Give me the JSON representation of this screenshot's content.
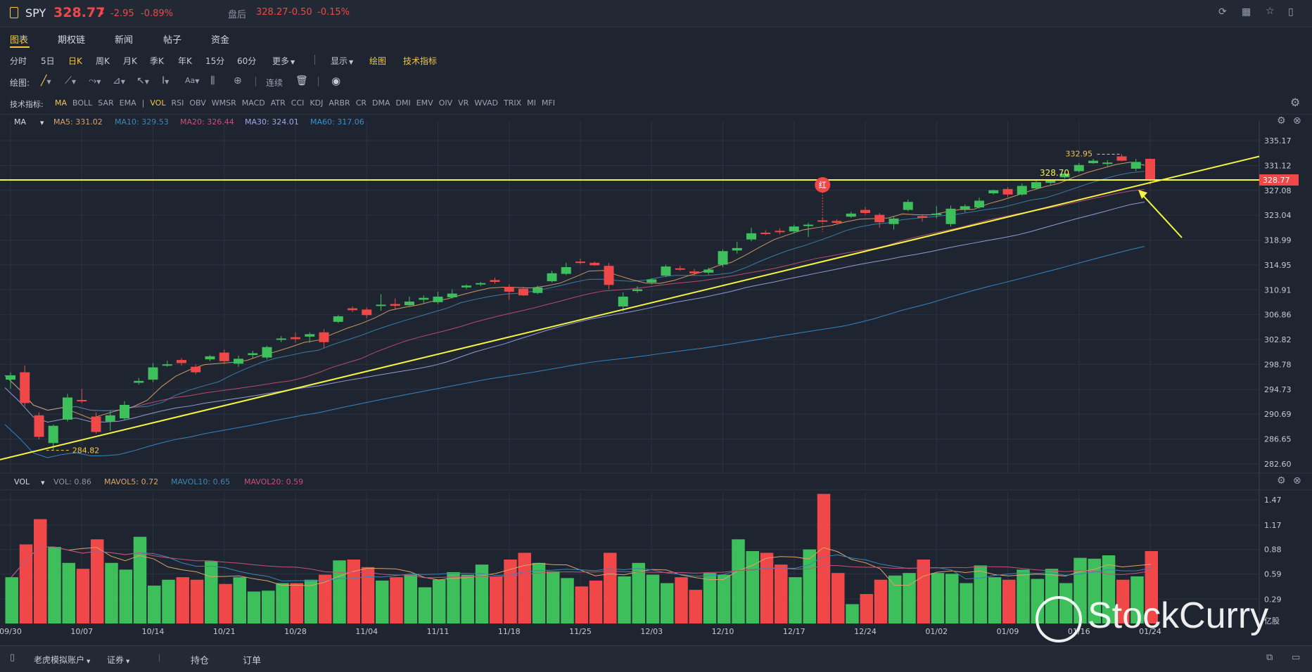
{
  "header": {
    "symbol": "SPY",
    "price": "328.77",
    "arrow": "⬇",
    "change": "-2.95",
    "change_pct": "-0.89%",
    "after_hours_label": "盘后",
    "after_hours_price": "328.27",
    "after_hours_change": "-0.50",
    "after_hours_pct": "-0.15%"
  },
  "nav_tabs": [
    "图表",
    "期权链",
    "新闻",
    "帖子",
    "资金"
  ],
  "periods": [
    "分时",
    "5日",
    "日K",
    "周K",
    "月K",
    "季K",
    "年K",
    "15分",
    "60分"
  ],
  "more_label": "更多",
  "display_label": "显示",
  "draw_label": "绘图",
  "tech_label": "技术指标",
  "draw_toolbar": {
    "label": "绘图:",
    "continuous": "连续"
  },
  "indicators": {
    "label": "技术指标:",
    "main": [
      "MA",
      "BOLL",
      "SAR",
      "EMA"
    ],
    "sub": [
      "VOL",
      "RSI",
      "OBV",
      "WMSR",
      "MACD",
      "ATR",
      "CCI",
      "KDJ",
      "ARBR",
      "CR",
      "DMA",
      "DMI",
      "EMV",
      "OIV",
      "VR",
      "WVAD",
      "TRIX",
      "MI",
      "MFI"
    ]
  },
  "ma_legend": {
    "name": "MA",
    "items": [
      {
        "label": "MA5: 331.02",
        "color": "#d9a46a"
      },
      {
        "label": "MA10: 329.53",
        "color": "#3d86b4"
      },
      {
        "label": "MA20: 326.44",
        "color": "#c84f7a"
      },
      {
        "label": "MA30: 324.01",
        "color": "#9fa7ea"
      },
      {
        "label": "MA60: 317.06",
        "color": "#3a8fd0"
      }
    ]
  },
  "vol_legend": {
    "name": "VOL",
    "items": [
      {
        "label": "VOL: 0.86",
        "color": "#8b93a0"
      },
      {
        "label": "MAVOL5: 0.72",
        "color": "#d9a46a"
      },
      {
        "label": "MAVOL10: 0.65",
        "color": "#3d86b4"
      },
      {
        "label": "MAVOL20: 0.59",
        "color": "#c84f7a"
      }
    ]
  },
  "price_axis": [
    "335.17",
    "331.12",
    "327.08",
    "323.04",
    "318.99",
    "314.95",
    "310.91",
    "306.86",
    "302.82",
    "298.78",
    "294.73",
    "290.69",
    "286.65",
    "282.60"
  ],
  "current_price_tag": "328.77",
  "vol_axis": [
    "1.47",
    "1.17",
    "0.88",
    "0.59",
    "0.29",
    "亿股"
  ],
  "date_labels": [
    "09/30",
    "10/07",
    "10/14",
    "10/21",
    "10/28",
    "11/04",
    "11/11",
    "11/18",
    "11/25",
    "12/03",
    "12/10",
    "12/17",
    "12/24",
    "01/02",
    "01/09",
    "01/16",
    "01/24"
  ],
  "annotations": {
    "high": "332.95",
    "low": "284.82",
    "level": "328.70",
    "marker": "红"
  },
  "watermark": "StockCurry",
  "bottom": {
    "account": "老虎模拟账户",
    "type": "证券",
    "positions": "持仓",
    "orders": "订单"
  },
  "colors": {
    "up": "#3dbf5c",
    "down": "#f04848",
    "bg": "#1f2530",
    "yellow": "#f5f542"
  },
  "chart_data": {
    "type": "candlestick",
    "candles": [
      {
        "o": 296.3,
        "h": 297.5,
        "l": 294.8,
        "c": 297.0
      },
      {
        "o": 297.5,
        "h": 298.6,
        "l": 292.0,
        "c": 292.5
      },
      {
        "o": 290.5,
        "h": 291.0,
        "l": 286.6,
        "c": 287.0
      },
      {
        "o": 286.0,
        "h": 289.0,
        "l": 284.82,
        "c": 288.8
      },
      {
        "o": 289.8,
        "h": 294.0,
        "l": 289.5,
        "c": 293.4
      },
      {
        "o": 293.0,
        "h": 294.8,
        "l": 292.5,
        "c": 292.9
      },
      {
        "o": 290.3,
        "h": 291.0,
        "l": 287.5,
        "c": 287.8
      },
      {
        "o": 289.5,
        "h": 291.3,
        "l": 288.0,
        "c": 290.5
      },
      {
        "o": 290.0,
        "h": 292.8,
        "l": 289.7,
        "c": 292.2
      },
      {
        "o": 295.8,
        "h": 296.6,
        "l": 295.5,
        "c": 296.1
      },
      {
        "o": 296.3,
        "h": 299.0,
        "l": 295.9,
        "c": 298.3
      },
      {
        "o": 298.7,
        "h": 299.4,
        "l": 298.4,
        "c": 298.8
      },
      {
        "o": 299.5,
        "h": 299.8,
        "l": 298.6,
        "c": 299.0
      },
      {
        "o": 298.4,
        "h": 298.8,
        "l": 297.2,
        "c": 297.5
      },
      {
        "o": 299.6,
        "h": 300.3,
        "l": 299.3,
        "c": 300.1
      },
      {
        "o": 300.7,
        "h": 301.2,
        "l": 298.8,
        "c": 299.3
      },
      {
        "o": 298.9,
        "h": 300.2,
        "l": 298.4,
        "c": 299.7
      },
      {
        "o": 300.3,
        "h": 301.0,
        "l": 299.8,
        "c": 300.6
      },
      {
        "o": 299.9,
        "h": 301.8,
        "l": 299.6,
        "c": 301.6
      },
      {
        "o": 302.8,
        "h": 303.4,
        "l": 302.4,
        "c": 303.0
      },
      {
        "o": 303.2,
        "h": 304.0,
        "l": 302.3,
        "c": 302.9
      },
      {
        "o": 303.3,
        "h": 304.0,
        "l": 302.3,
        "c": 303.7
      },
      {
        "o": 304.0,
        "h": 304.5,
        "l": 301.5,
        "c": 302.4
      },
      {
        "o": 305.7,
        "h": 306.8,
        "l": 305.5,
        "c": 306.6
      },
      {
        "o": 307.9,
        "h": 308.2,
        "l": 307.3,
        "c": 307.6
      },
      {
        "o": 307.7,
        "h": 308.0,
        "l": 306.3,
        "c": 306.8
      },
      {
        "o": 308.4,
        "h": 310.2,
        "l": 307.5,
        "c": 308.5
      },
      {
        "o": 308.6,
        "h": 309.5,
        "l": 307.8,
        "c": 308.3
      },
      {
        "o": 308.4,
        "h": 309.8,
        "l": 308.2,
        "c": 309.0
      },
      {
        "o": 309.3,
        "h": 310.0,
        "l": 308.8,
        "c": 309.6
      },
      {
        "o": 308.9,
        "h": 310.6,
        "l": 308.6,
        "c": 309.8
      },
      {
        "o": 309.7,
        "h": 311.0,
        "l": 309.5,
        "c": 310.3
      },
      {
        "o": 311.3,
        "h": 311.8,
        "l": 311.0,
        "c": 311.6
      },
      {
        "o": 311.8,
        "h": 312.2,
        "l": 311.5,
        "c": 312.0
      },
      {
        "o": 312.5,
        "h": 312.9,
        "l": 311.9,
        "c": 312.2
      },
      {
        "o": 311.4,
        "h": 311.8,
        "l": 309.3,
        "c": 310.6
      },
      {
        "o": 311.1,
        "h": 311.4,
        "l": 309.9,
        "c": 310.0
      },
      {
        "o": 310.4,
        "h": 311.6,
        "l": 310.2,
        "c": 311.3
      },
      {
        "o": 312.3,
        "h": 314.0,
        "l": 312.1,
        "c": 313.6
      },
      {
        "o": 313.5,
        "h": 315.3,
        "l": 313.3,
        "c": 314.6
      },
      {
        "o": 315.5,
        "h": 316.0,
        "l": 315.0,
        "c": 315.4
      },
      {
        "o": 315.3,
        "h": 315.5,
        "l": 314.8,
        "c": 314.9
      },
      {
        "o": 314.8,
        "h": 315.3,
        "l": 311.0,
        "c": 311.7
      },
      {
        "o": 308.2,
        "h": 310.5,
        "l": 307.4,
        "c": 309.8
      },
      {
        "o": 310.7,
        "h": 311.5,
        "l": 310.4,
        "c": 311.0
      },
      {
        "o": 312.1,
        "h": 312.8,
        "l": 311.8,
        "c": 312.6
      },
      {
        "o": 313.2,
        "h": 315.0,
        "l": 313.0,
        "c": 314.7
      },
      {
        "o": 314.4,
        "h": 314.8,
        "l": 314.0,
        "c": 314.2
      },
      {
        "o": 313.9,
        "h": 314.3,
        "l": 313.2,
        "c": 313.6
      },
      {
        "o": 313.7,
        "h": 314.5,
        "l": 313.4,
        "c": 314.2
      },
      {
        "o": 315.0,
        "h": 317.5,
        "l": 314.6,
        "c": 317.2
      },
      {
        "o": 317.3,
        "h": 318.7,
        "l": 316.8,
        "c": 317.7
      },
      {
        "o": 319.1,
        "h": 321.0,
        "l": 318.8,
        "c": 320.1
      },
      {
        "o": 320.2,
        "h": 320.6,
        "l": 319.8,
        "c": 320.1
      },
      {
        "o": 320.5,
        "h": 320.9,
        "l": 319.9,
        "c": 320.3
      },
      {
        "o": 320.4,
        "h": 321.5,
        "l": 320.1,
        "c": 321.2
      },
      {
        "o": 321.3,
        "h": 321.8,
        "l": 319.5,
        "c": 321.5
      },
      {
        "o": 322.2,
        "h": 322.6,
        "l": 321.9,
        "c": 322.0
      },
      {
        "o": 322.1,
        "h": 322.4,
        "l": 321.7,
        "c": 321.8
      },
      {
        "o": 322.8,
        "h": 323.6,
        "l": 322.6,
        "c": 323.3
      },
      {
        "o": 323.9,
        "h": 324.4,
        "l": 323.1,
        "c": 323.4
      },
      {
        "o": 323.1,
        "h": 323.4,
        "l": 321.0,
        "c": 321.9
      },
      {
        "o": 321.6,
        "h": 322.8,
        "l": 320.7,
        "c": 322.5
      },
      {
        "o": 323.9,
        "h": 325.6,
        "l": 323.7,
        "c": 325.2
      },
      {
        "o": 322.9,
        "h": 323.2,
        "l": 322.0,
        "c": 322.6
      },
      {
        "o": 323.1,
        "h": 324.5,
        "l": 322.5,
        "c": 323.3
      },
      {
        "o": 321.6,
        "h": 324.6,
        "l": 321.2,
        "c": 324.1
      },
      {
        "o": 324.0,
        "h": 324.8,
        "l": 323.5,
        "c": 324.5
      },
      {
        "o": 324.3,
        "h": 325.9,
        "l": 324.1,
        "c": 325.4
      },
      {
        "o": 326.6,
        "h": 327.2,
        "l": 326.4,
        "c": 327.1
      },
      {
        "o": 327.3,
        "h": 327.6,
        "l": 326.0,
        "c": 326.4
      },
      {
        "o": 326.4,
        "h": 328.2,
        "l": 326.2,
        "c": 327.8
      },
      {
        "o": 327.4,
        "h": 328.8,
        "l": 327.2,
        "c": 328.4
      },
      {
        "o": 328.3,
        "h": 328.8,
        "l": 328.0,
        "c": 328.7
      },
      {
        "o": 329.2,
        "h": 330.0,
        "l": 329.0,
        "c": 329.8
      },
      {
        "o": 330.2,
        "h": 331.5,
        "l": 330.0,
        "c": 331.2
      },
      {
        "o": 331.5,
        "h": 332.2,
        "l": 331.4,
        "c": 331.9
      },
      {
        "o": 331.5,
        "h": 332.0,
        "l": 331.0,
        "c": 331.6
      },
      {
        "o": 332.6,
        "h": 332.95,
        "l": 331.8,
        "c": 331.9
      },
      {
        "o": 330.6,
        "h": 332.2,
        "l": 330.2,
        "c": 331.7
      },
      {
        "o": 332.2,
        "h": 332.3,
        "l": 328.0,
        "c": 328.77
      }
    ],
    "volume": [
      0.55,
      0.94,
      1.24,
      0.91,
      0.72,
      0.65,
      1.0,
      0.72,
      0.64,
      1.03,
      0.45,
      0.52,
      0.55,
      0.52,
      0.74,
      0.47,
      0.55,
      0.38,
      0.39,
      0.48,
      0.48,
      0.52,
      0.58,
      0.75,
      0.76,
      0.67,
      0.51,
      0.55,
      0.58,
      0.43,
      0.52,
      0.61,
      0.58,
      0.7,
      0.56,
      0.76,
      0.84,
      0.72,
      0.62,
      0.54,
      0.44,
      0.51,
      0.84,
      0.56,
      0.72,
      0.58,
      0.48,
      0.55,
      0.4,
      0.6,
      0.58,
      1.0,
      0.86,
      0.84,
      0.7,
      0.55,
      0.88,
      1.54,
      0.6,
      0.23,
      0.35,
      0.52,
      0.57,
      0.6,
      0.76,
      0.6,
      0.59,
      0.48,
      0.69,
      0.55,
      0.52,
      0.64,
      0.53,
      0.65,
      0.48,
      0.78,
      0.77,
      0.81,
      0.52,
      0.56,
      0.86
    ],
    "ylim": [
      282.6,
      335.17
    ],
    "vol_ylim": [
      0,
      1.47
    ]
  }
}
